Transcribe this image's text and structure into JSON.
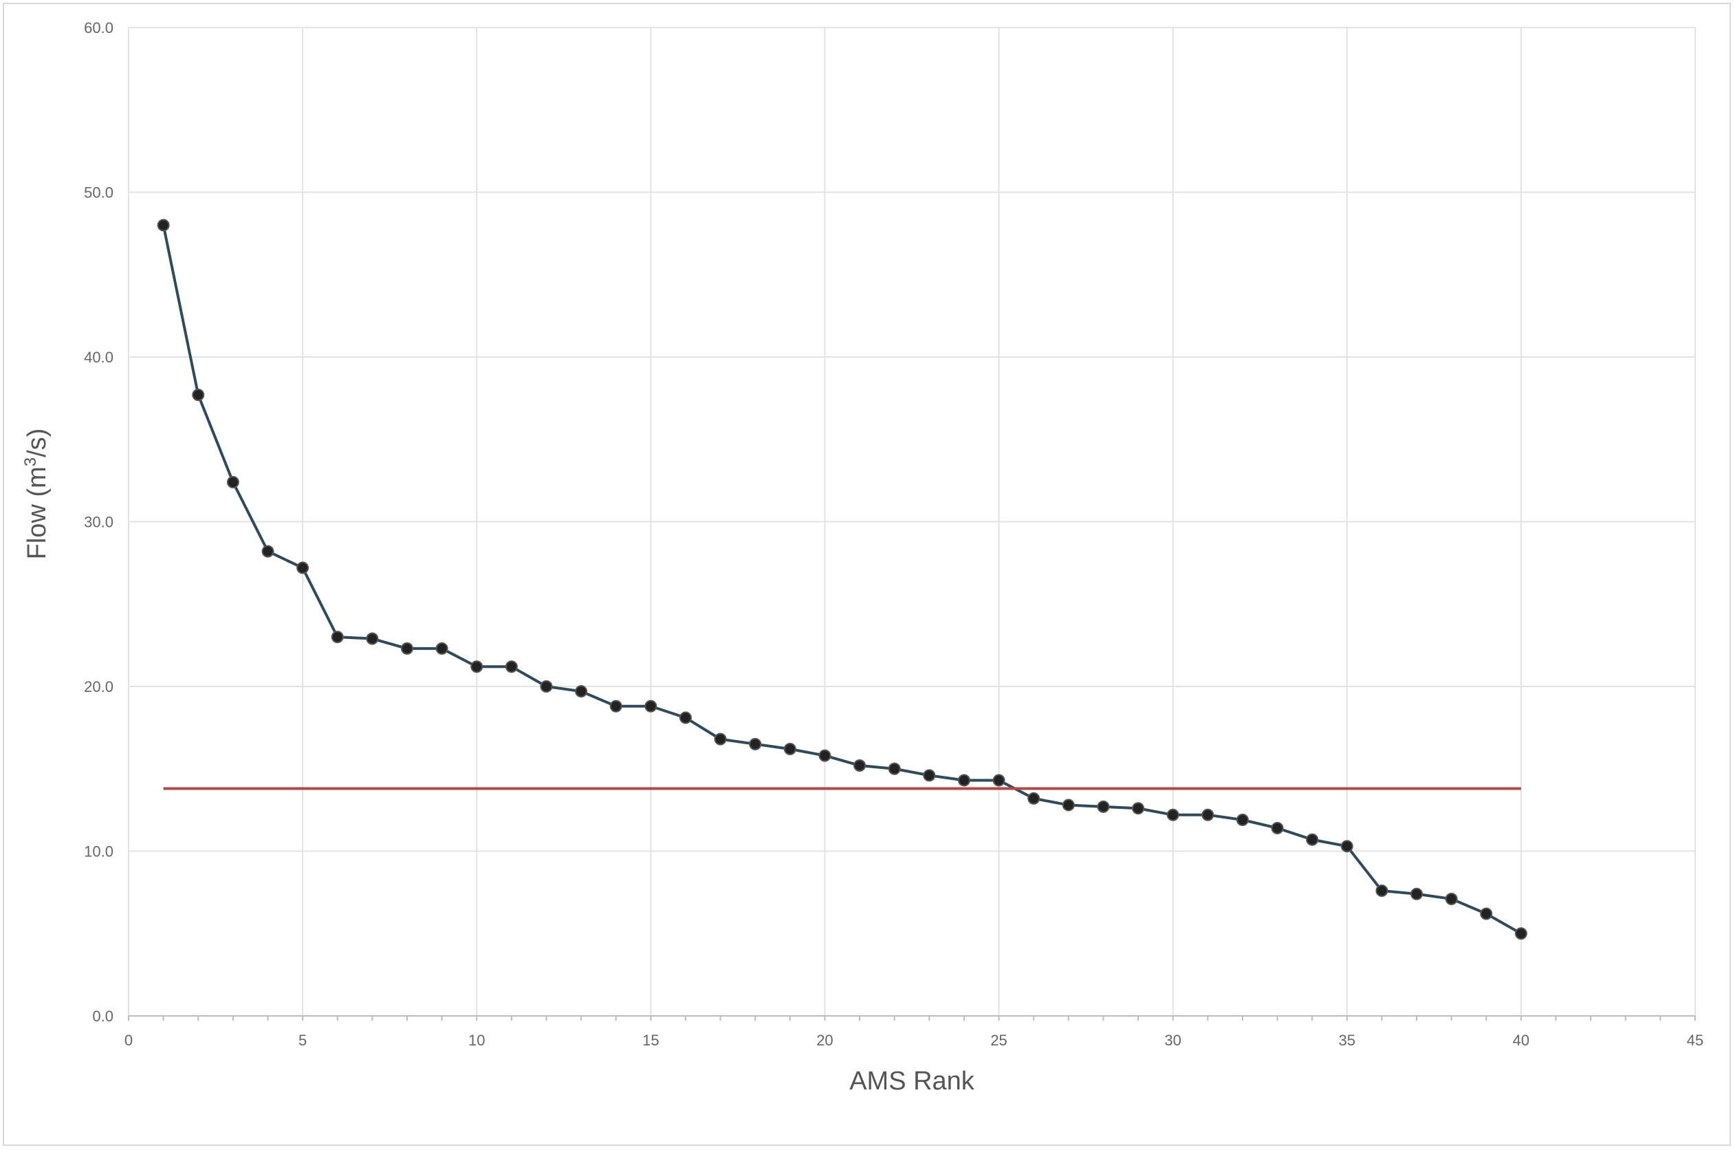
{
  "chart_data": {
    "type": "line",
    "xlabel": "AMS Rank",
    "ylabel_prefix": "Flow (m",
    "ylabel_sup": "3",
    "ylabel_suffix": "/s)",
    "xlim": [
      0,
      45
    ],
    "ylim": [
      0,
      60
    ],
    "x_ticks": [
      0,
      5,
      10,
      15,
      20,
      25,
      30,
      35,
      40,
      45
    ],
    "x_tick_labels": [
      "0",
      "5",
      "10",
      "15",
      "20",
      "25",
      "30",
      "35",
      "40",
      "45"
    ],
    "y_ticks": [
      0,
      10,
      20,
      30,
      40,
      50,
      60
    ],
    "y_tick_labels": [
      "0.0",
      "10.0",
      "20.0",
      "30.0",
      "40.0",
      "50.0",
      "60.0"
    ],
    "grid": true,
    "series": [
      {
        "x": [
          1,
          2,
          3,
          4,
          5,
          6,
          7,
          8,
          9,
          10,
          11,
          12,
          13,
          14,
          15,
          16,
          17,
          18,
          19,
          20,
          21,
          22,
          23,
          24,
          25,
          26,
          27,
          28,
          29,
          30,
          31,
          32,
          33,
          34,
          35,
          36,
          37,
          38,
          39,
          40
        ],
        "values": [
          48.0,
          37.7,
          32.4,
          28.2,
          27.2,
          23.0,
          22.9,
          22.3,
          22.3,
          21.2,
          21.2,
          20.0,
          19.7,
          18.8,
          18.8,
          18.1,
          16.8,
          16.5,
          16.2,
          15.8,
          15.2,
          15.0,
          14.6,
          14.3,
          14.3,
          13.2,
          12.8,
          12.7,
          12.6,
          12.2,
          12.2,
          11.9,
          11.4,
          10.7,
          10.3,
          7.6,
          7.4,
          7.1,
          6.2,
          5.0
        ],
        "color": "#2e4a5c",
        "marker_color": "#222222"
      },
      {
        "x": [
          1,
          40
        ],
        "values": [
          13.8,
          13.8
        ],
        "color": "#b24848"
      }
    ]
  }
}
